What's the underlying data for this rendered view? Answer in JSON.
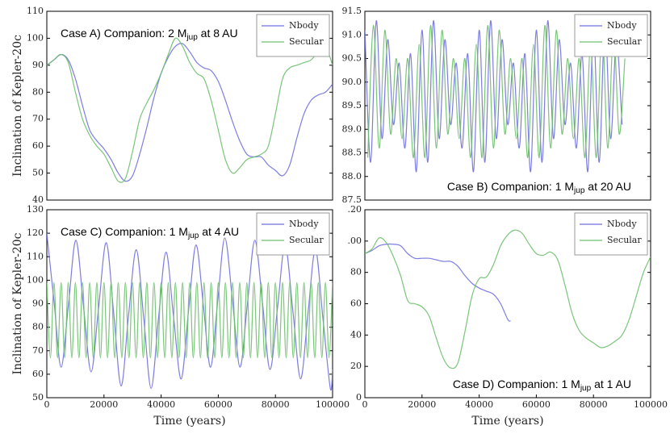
{
  "chart_data": [
    {
      "type": "line",
      "y_label": "Inclination of Kepler-20c",
      "annotation": {
        "text": "Case A) Companion: 2 M",
        "sub": "jup",
        "rest": " at 8 AU"
      },
      "annotation_position": "upper left",
      "legend": "upper right",
      "xlim": [
        0,
        100000
      ],
      "ylim": [
        40,
        110
      ],
      "yticks": [
        40,
        50,
        60,
        70,
        80,
        90,
        100,
        110
      ],
      "series": [
        {
          "name": "Nbody",
          "color": "#6f6fe0",
          "x": [
            0,
            2500,
            5000,
            7500,
            10000,
            12500,
            15000,
            17500,
            20000,
            22500,
            25000,
            27500,
            30000,
            32500,
            35000,
            37500,
            40000,
            42500,
            45000,
            47500,
            50000,
            52500,
            55000,
            57500,
            60000,
            62500,
            65000,
            67500,
            70000,
            72500,
            75000,
            77500,
            80000,
            82500,
            85000,
            87500,
            90000,
            92500,
            95000,
            97500,
            100000
          ],
          "values": [
            90,
            92,
            94,
            92,
            85,
            75,
            66,
            62,
            59,
            55,
            50,
            47,
            49,
            57,
            67,
            78,
            87,
            93,
            97,
            98,
            95,
            91,
            89,
            88,
            84,
            77,
            69,
            62,
            57,
            56,
            56,
            53,
            51,
            49,
            53,
            63,
            72,
            77,
            79,
            80,
            83
          ]
        },
        {
          "name": "Secular",
          "color": "#6cbf6c",
          "x": [
            0,
            2500,
            5000,
            7500,
            10000,
            12500,
            15000,
            17500,
            20000,
            22500,
            25000,
            27500,
            30000,
            32500,
            35000,
            37500,
            40000,
            42500,
            45000,
            47500,
            50000,
            52500,
            55000,
            57500,
            60000,
            62500,
            65000,
            67500,
            70000,
            72500,
            75000,
            77500,
            80000,
            82500,
            85000,
            87500,
            90000,
            92500,
            95000,
            97500,
            100000
          ],
          "values": [
            90,
            92,
            94,
            91,
            80,
            70,
            64,
            60,
            57,
            52,
            47,
            48,
            58,
            70,
            76,
            81,
            87,
            94,
            100,
            97,
            91,
            87,
            85,
            77,
            66,
            55,
            50,
            52,
            55,
            56,
            57,
            60,
            72,
            85,
            89,
            90,
            91,
            92,
            95,
            97,
            90
          ]
        }
      ]
    },
    {
      "type": "line",
      "annotation": {
        "text": "Case B) Companion: 1 M",
        "sub": "jup",
        "rest": " at 20 AU"
      },
      "annotation_position": "lower right",
      "legend": "upper right",
      "xlim": [
        0,
        100000
      ],
      "ylim": [
        87.5,
        91.5
      ],
      "yticks": [
        87.5,
        {
          "value": 88,
          "label": "88.0"
        },
        88.5,
        {
          "value": 89,
          "label": "89.0"
        },
        89.5,
        {
          "value": 90,
          "label": "90.0"
        },
        90.5,
        {
          "value": 91,
          "label": "91.0"
        },
        91.5
      ],
      "series": [
        {
          "name": "Nbody",
          "color": "#6f6fe0",
          "x": [
            0,
            2000,
            4000,
            6000,
            8000,
            10000,
            12000,
            14000,
            16000,
            18000,
            20000,
            22000,
            24000,
            26000,
            28000,
            30000,
            32000,
            34000,
            36000,
            38000,
            40000,
            42000,
            44000,
            46000,
            48000,
            50000,
            52000,
            54000,
            56000,
            58000,
            60000,
            62000,
            64000,
            66000,
            68000,
            70000,
            72000,
            74000,
            76000,
            78000,
            80000,
            82000,
            84000,
            86000,
            88000,
            90000
          ],
          "values": [
            91.1,
            88.3,
            91.3,
            88.8,
            90.9,
            89.1,
            90.4,
            88.6,
            90.6,
            88.1,
            91.1,
            88.3,
            91.3,
            88.8,
            90.9,
            89.1,
            90.4,
            88.6,
            90.6,
            88.1,
            91.1,
            88.3,
            91.3,
            88.8,
            90.9,
            89.1,
            90.4,
            88.6,
            90.6,
            88.1,
            91.1,
            88.3,
            91.3,
            88.8,
            90.9,
            89.1,
            90.4,
            88.6,
            90.6,
            88.1,
            91.1,
            88.3,
            91.3,
            88.8,
            90.9,
            89.1
          ]
        },
        {
          "name": "Secular",
          "color": "#6cbf6c",
          "x": [
            1000,
            3000,
            5000,
            7000,
            9000,
            11000,
            13000,
            15000,
            17000,
            19000,
            21000,
            23000,
            25000,
            27000,
            29000,
            31000,
            33000,
            35000,
            37000,
            39000,
            41000,
            43000,
            45000,
            47000,
            49000,
            51000,
            53000,
            55000,
            57000,
            59000,
            61000,
            63000,
            65000,
            67000,
            69000,
            71000,
            73000,
            75000,
            77000,
            79000,
            81000,
            83000,
            85000,
            87000,
            89000,
            91000
          ],
          "values": [
            88.4,
            91.2,
            88.6,
            91.1,
            88.9,
            90.5,
            88.8,
            90.5,
            88.4,
            90.8,
            88.4,
            91.2,
            88.6,
            91.1,
            88.9,
            90.5,
            88.8,
            90.5,
            88.4,
            90.8,
            88.4,
            91.2,
            88.6,
            91.1,
            88.9,
            90.5,
            88.8,
            90.5,
            88.4,
            90.8,
            88.4,
            91.2,
            88.6,
            91.1,
            88.9,
            90.5,
            88.8,
            90.5,
            88.4,
            90.8,
            88.4,
            91.2,
            88.6,
            91.1,
            88.9,
            90.5
          ]
        }
      ]
    },
    {
      "type": "line",
      "y_label": "Inclination of Kepler-20c",
      "x_label": "Time (years)",
      "annotation": {
        "text": "Case C) Companion: 1 M",
        "sub": "jup",
        "rest": " at 4 AU"
      },
      "annotation_position": "upper left",
      "legend": "upper right",
      "xlim": [
        0,
        100000
      ],
      "ylim": [
        50,
        130
      ],
      "yticks": [
        50,
        60,
        70,
        80,
        90,
        100,
        110,
        120,
        130
      ],
      "xticks": [
        0,
        20000,
        40000,
        60000,
        80000,
        100000
      ],
      "series": [
        {
          "name": "Nbody",
          "color": "#6f6fe0",
          "x": [
            0,
            2600,
            5000,
            7600,
            10200,
            12900,
            15500,
            18100,
            20800,
            23400,
            26000,
            28600,
            31300,
            33900,
            36500,
            39100,
            41700,
            44300,
            47000,
            49600,
            52200,
            54800,
            57300,
            59800,
            62300,
            65000,
            67600,
            70200,
            72800,
            75500,
            78100,
            80800,
            83400,
            86100,
            88800,
            91400,
            94000,
            96600,
            99200,
            100000
          ],
          "values": [
            120,
            90,
            63,
            90,
            117,
            88,
            61,
            88,
            116,
            86,
            55,
            85,
            113,
            84,
            54,
            84,
            112,
            85,
            58,
            87,
            115,
            89,
            63,
            91,
            118,
            91,
            63,
            90,
            117,
            90,
            62,
            89,
            115,
            87,
            58,
            86,
            113,
            84,
            54,
            62
          ]
        },
        {
          "name": "Secular",
          "color": "#6cbf6c",
          "x": [
            0,
            1250,
            2500,
            3750,
            5000,
            6250,
            7500,
            8750,
            10000,
            11250,
            12500,
            13750,
            15000,
            16250,
            17500,
            18750,
            20000,
            21250,
            22500,
            23750,
            25000,
            26250,
            27500,
            28750,
            30000,
            31250,
            32500,
            33750,
            35000,
            36250,
            37500,
            38750,
            40000,
            41250,
            42500,
            43750,
            45000,
            46250,
            47500,
            48750,
            50000,
            51250,
            52500,
            53750,
            55000,
            56250,
            57500,
            58750,
            60000,
            61250,
            62500,
            63750,
            65000,
            66250,
            67500,
            68750,
            70000,
            71250,
            72500,
            73750,
            75000,
            76250,
            77500,
            78750,
            80000,
            81250,
            82500,
            83750,
            85000,
            86250,
            87500,
            88750,
            90000,
            91250,
            92500,
            93750,
            95000,
            96250,
            97500,
            98750,
            100000
          ],
          "values": [
            99,
            67,
            99,
            67,
            99,
            67,
            99,
            67,
            99,
            67,
            99,
            67,
            99,
            67,
            99,
            67,
            99,
            67,
            99,
            67,
            99,
            67,
            99,
            67,
            99,
            67,
            99,
            67,
            99,
            67,
            99,
            67,
            99,
            67,
            99,
            67,
            99,
            67,
            99,
            67,
            99,
            67,
            99,
            67,
            99,
            67,
            99,
            67,
            99,
            67,
            99,
            67,
            99,
            67,
            99,
            67,
            99,
            67,
            99,
            67,
            99,
            67,
            99,
            67,
            99,
            67,
            99,
            67,
            99,
            67,
            99,
            67,
            99,
            67,
            99,
            67,
            99,
            67,
            99,
            67,
            99
          ]
        }
      ]
    },
    {
      "type": "line",
      "x_label": "Time (years)",
      "annotation": {
        "text": "Case D) Companion: 1 M",
        "sub": "jup",
        "rest": " at 1 AU"
      },
      "annotation_position": "lower right",
      "legend": "upper right",
      "xlim": [
        0,
        100000
      ],
      "ylim": [
        0,
        120
      ],
      "yticks": [
        0,
        20,
        40,
        60,
        80,
        {
          "value": 100,
          "label": ".00"
        },
        {
          "value": 120,
          "label": ".20"
        }
      ],
      "xticks": [
        0,
        20000,
        40000,
        60000,
        80000,
        100000
      ],
      "series": [
        {
          "name": "Nbody",
          "color": "#6f6fe0",
          "x": [
            0,
            2500,
            5000,
            7500,
            10000,
            12500,
            15000,
            17500,
            20000,
            22500,
            25000,
            27500,
            30000,
            32500,
            35000,
            37500,
            40000,
            42500,
            45000,
            47500,
            50000,
            51000
          ],
          "values": [
            92,
            94,
            97,
            98,
            98,
            97,
            92,
            89,
            89,
            89,
            88,
            87,
            87,
            84,
            78,
            73,
            70,
            68,
            66,
            60,
            50,
            49
          ]
        },
        {
          "name": "Secular",
          "color": "#6cbf6c",
          "x": [
            0,
            2500,
            5000,
            7500,
            10000,
            12500,
            15000,
            17500,
            20000,
            22500,
            25000,
            27500,
            30000,
            32500,
            35000,
            37500,
            40000,
            42500,
            45000,
            47500,
            50000,
            52500,
            55000,
            57500,
            60000,
            62500,
            65000,
            67500,
            70000,
            72500,
            75000,
            77500,
            80000,
            82500,
            85000,
            87500,
            90000,
            92500,
            95000,
            97500,
            100000
          ],
          "values": [
            92,
            95,
            102,
            99,
            90,
            78,
            62,
            60,
            58,
            52,
            38,
            25,
            19,
            22,
            42,
            65,
            76,
            77,
            85,
            97,
            104,
            107,
            105,
            98,
            92,
            91,
            93,
            88,
            72,
            54,
            43,
            38,
            35,
            32,
            33,
            36,
            40,
            50,
            65,
            80,
            90
          ]
        }
      ]
    }
  ]
}
